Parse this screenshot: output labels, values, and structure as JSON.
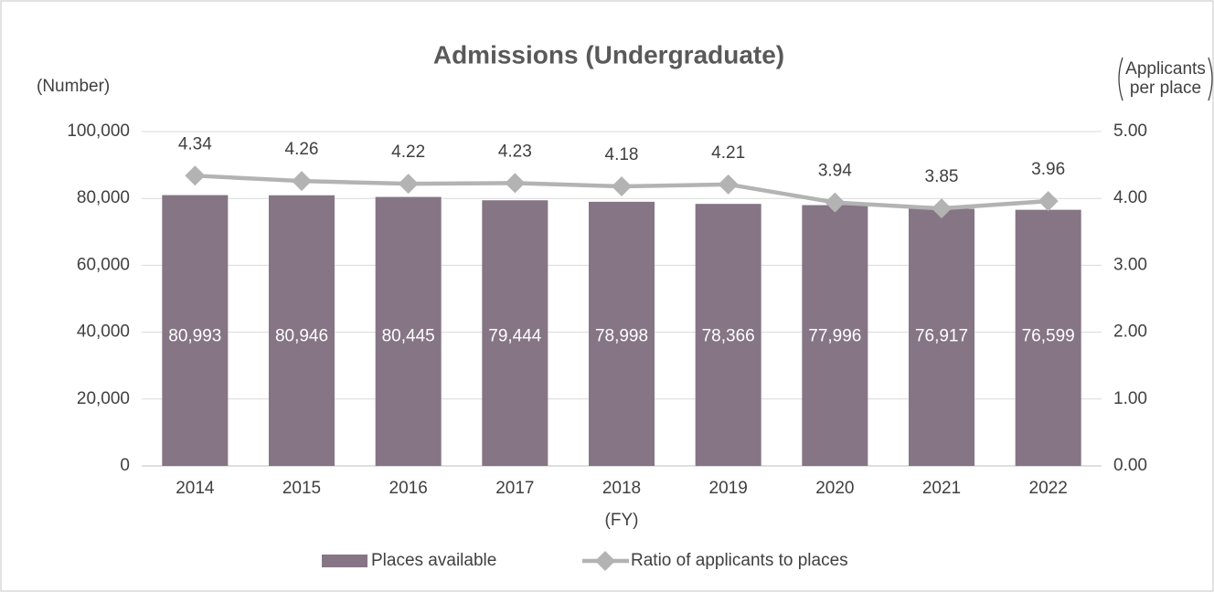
{
  "chart_data": {
    "type": "bar_line",
    "title": "Admissions (Undergraduate)",
    "y_label": "(Number)",
    "y2_label_lines": [
      "Applicants",
      "per place"
    ],
    "x_label": "(FY)",
    "categories": [
      "2014",
      "2015",
      "2016",
      "2017",
      "2018",
      "2019",
      "2020",
      "2021",
      "2022"
    ],
    "series": [
      {
        "name": "Places available",
        "type": "bar",
        "color": "#857585",
        "values": [
          80993,
          80946,
          80445,
          79444,
          78998,
          78366,
          77996,
          76917,
          76599
        ],
        "value_labels": [
          "80,993",
          "80,946",
          "80,445",
          "79,444",
          "78,998",
          "78,366",
          "77,996",
          "76,917",
          "76,599"
        ]
      },
      {
        "name": "Ratio of applicants to places",
        "type": "line",
        "color": "#b3b3b3",
        "axis": "y2",
        "values": [
          4.34,
          4.26,
          4.22,
          4.23,
          4.18,
          4.21,
          3.94,
          3.85,
          3.96
        ]
      }
    ],
    "ylim": [
      0,
      100000
    ],
    "yticks": [
      0,
      {
        "value": 20000,
        "label": "20,000"
      },
      {
        "value": 40000,
        "label": "40,000"
      },
      {
        "value": 60000,
        "label": "60,000"
      },
      {
        "value": 80000,
        "label": "80,000"
      },
      {
        "value": 100000,
        "label": "100,000"
      }
    ],
    "y2lim": [
      0,
      5
    ],
    "y2ticks": [
      {
        "value": 0,
        "label": "0.00"
      },
      {
        "value": 1,
        "label": "1.00"
      },
      {
        "value": 2,
        "label": "2.00"
      },
      {
        "value": 3,
        "label": "3.00"
      },
      {
        "value": 4,
        "label": "4.00"
      },
      {
        "value": 5,
        "label": "5.00"
      }
    ],
    "grid": true
  }
}
